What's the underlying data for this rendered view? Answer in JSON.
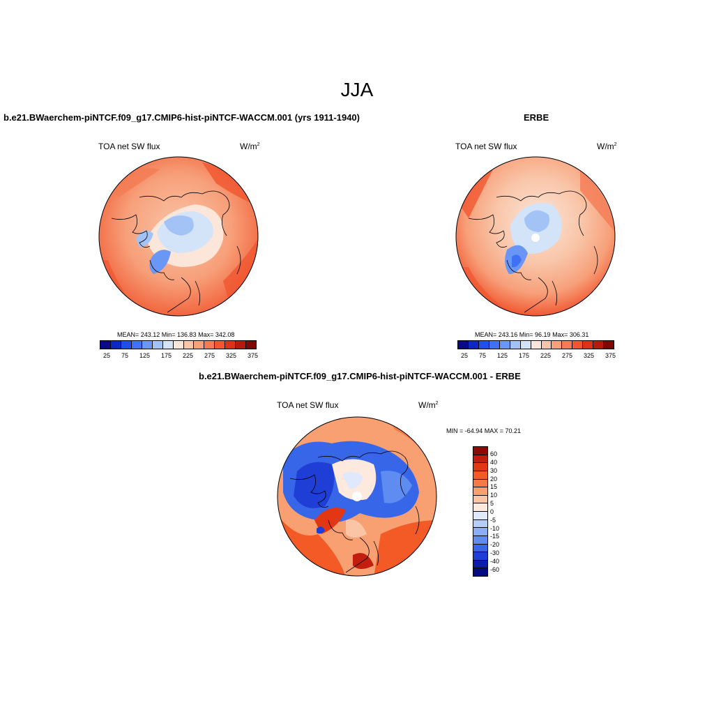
{
  "figure": {
    "season": "JJA"
  },
  "panels": [
    {
      "title": "b.e21.BWaerchem-piNTCF.f09_g17.CMIP6-hist-piNTCF-WACCM.001 (yrs 1911-1940)",
      "variable": "TOA net SW flux",
      "units_base": "W/m",
      "units_sup": "2",
      "stats": "MEAN= 243.12   Min= 136.83   Max= 342.08",
      "colorbar_labels": [
        "25",
        "75",
        "125",
        "175",
        "225",
        "275",
        "325",
        "375"
      ],
      "colorbar_colors": [
        "#0a0a85",
        "#0c27c2",
        "#1f4fe8",
        "#3f72f2",
        "#6a97f5",
        "#a3c3f7",
        "#d3e4f9",
        "#fbe6d9",
        "#f9c5a8",
        "#f7a07a",
        "#f47c55",
        "#f0562f",
        "#da3318",
        "#b31b0b",
        "#7a0a03"
      ]
    },
    {
      "title": "ERBE",
      "variable": "TOA net SW flux",
      "units_base": "W/m",
      "units_sup": "2",
      "stats": "MEAN= 243.16   Min=  96.19   Max= 306.31",
      "colorbar_labels": [
        "25",
        "75",
        "125",
        "175",
        "225",
        "275",
        "325",
        "375"
      ],
      "colorbar_colors": [
        "#0a0a85",
        "#0c27c2",
        "#1f4fe8",
        "#3f72f2",
        "#6a97f5",
        "#a3c3f7",
        "#d3e4f9",
        "#fbe6d9",
        "#f9c5a8",
        "#f7a07a",
        "#f47c55",
        "#f0562f",
        "#da3318",
        "#b31b0b",
        "#7a0a03"
      ]
    },
    {
      "title": "b.e21.BWaerchem-piNTCF.f09_g17.CMIP6-hist-piNTCF-WACCM.001 - ERBE",
      "variable": "TOA net SW flux",
      "units_base": "W/m",
      "units_sup": "2",
      "stats": "MIN = -64.94  MAX =  70.21",
      "colorbar_labels": [
        "60",
        "40",
        "30",
        "20",
        "15",
        "10",
        "5",
        "0",
        "-5",
        "-10",
        "-15",
        "-20",
        "-30",
        "-40",
        "-60"
      ],
      "colorbar_colors": [
        "#8a0c05",
        "#c21d0e",
        "#e13715",
        "#f35a25",
        "#f67a45",
        "#f8a072",
        "#fac5a5",
        "#fde9dd",
        "#dfe9fb",
        "#b6cdf7",
        "#8aaff4",
        "#5e8cf0",
        "#3866e8",
        "#1e3ed6",
        "#0c1ea8",
        "#050a80"
      ]
    }
  ]
}
